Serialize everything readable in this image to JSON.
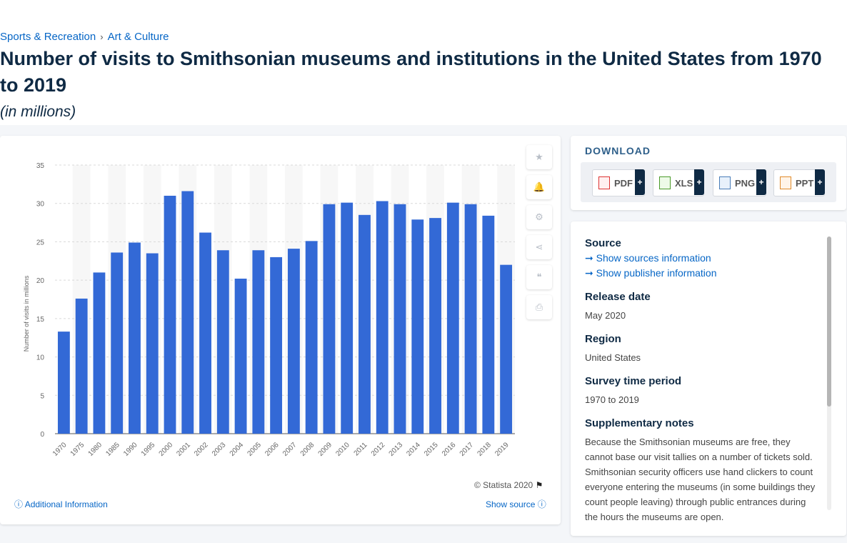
{
  "breadcrumb": {
    "item1": "Sports & Recreation",
    "sep": "›",
    "item2": "Art & Culture"
  },
  "title": "Number of visits to Smithsonian museums and institutions in the United States from 1970 to 2019",
  "subtitle": "(in millions)",
  "chart_data": {
    "type": "bar",
    "title": "",
    "xlabel": "",
    "ylabel": "Number of visits in millions",
    "ylim": [
      0,
      35
    ],
    "yticks": [
      0,
      5,
      10,
      15,
      20,
      25,
      30,
      35
    ],
    "grid": true,
    "bar_color": "#3369d6",
    "categories": [
      "1970",
      "1975",
      "1980",
      "1985",
      "1990",
      "1995",
      "2000",
      "2001",
      "2002",
      "2003",
      "2004",
      "2005",
      "2006",
      "2007",
      "2008",
      "2009",
      "2010",
      "2011",
      "2012",
      "2013",
      "2014",
      "2015",
      "2016",
      "2017",
      "2018",
      "2019"
    ],
    "values": [
      13.3,
      17.6,
      21.0,
      23.6,
      24.9,
      23.5,
      31.0,
      31.6,
      26.2,
      23.9,
      20.2,
      23.9,
      23.0,
      24.1,
      25.1,
      29.9,
      30.1,
      28.5,
      30.3,
      29.9,
      27.9,
      28.1,
      30.1,
      29.9,
      28.4,
      22.0
    ]
  },
  "tools": {
    "star": "★",
    "bell": "🔔",
    "gear": "⚙",
    "share": "⋖",
    "quote": "❝",
    "print": "⎙"
  },
  "copyright": "© Statista 2020",
  "additional_info": "Additional Information",
  "show_source": "Show source",
  "download": {
    "title": "DOWNLOAD",
    "pdf": "PDF",
    "xls": "XLS",
    "png": "PNG",
    "ppt": "PPT",
    "plus": "+"
  },
  "info": {
    "source_h": "Source",
    "show_sources": "Show sources information",
    "show_publisher": "Show publisher information",
    "release_h": "Release date",
    "release_v": "May 2020",
    "region_h": "Region",
    "region_v": "United States",
    "period_h": "Survey time period",
    "period_v": "1970 to 2019",
    "notes_h": "Supplementary notes",
    "notes_v": "Because the Smithsonian museums are free, they cannot base our visit tallies on a number of tickets sold. Smithsonian security officers use hand clickers to count everyone entering the museums (in some buildings they count people leaving) through public entrances during the hours the museums are open."
  }
}
